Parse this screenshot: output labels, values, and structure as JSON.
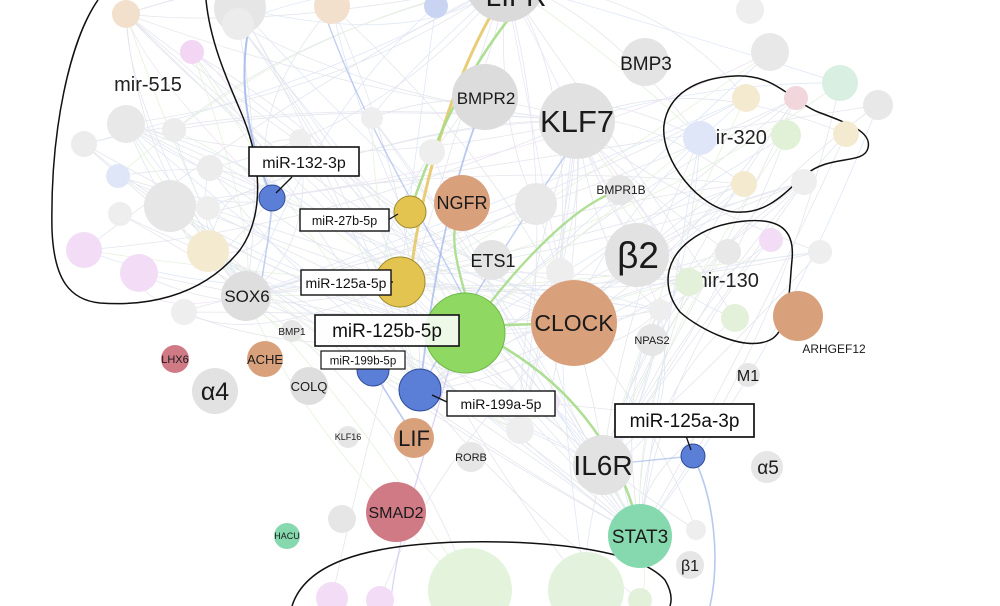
{
  "colors": {
    "gray": "#dadada",
    "mirna_blue": "#5b7fd6",
    "mirna_yellow": "#e3c450",
    "hub_green": "#8fd862",
    "tan": "#d9a07c",
    "red": "#d07a86",
    "teal": "#86d9ae",
    "edge_blue": "#9ab0e8",
    "edge_green": "#a6dc88",
    "edge_yellow": "#e6c867"
  },
  "clusters": [
    {
      "id": "c515",
      "label": "mir-515"
    },
    {
      "id": "c320",
      "label": "mir-320"
    },
    {
      "id": "c130",
      "label": "mir-130"
    },
    {
      "id": "cbot",
      "label": ""
    }
  ],
  "nodes": [
    {
      "id": "lifr",
      "label": "LIFR",
      "size": "xl",
      "color": "gray"
    },
    {
      "id": "bmp3",
      "label": "BMP3",
      "size": "md",
      "color": "gray"
    },
    {
      "id": "bmpr2",
      "label": "BMPR2",
      "size": "md",
      "color": "gray"
    },
    {
      "id": "klf7",
      "label": "KLF7",
      "size": "xl",
      "color": "gray"
    },
    {
      "id": "bmpr1b",
      "label": "BMPR1B",
      "size": "xs",
      "color": "gray"
    },
    {
      "id": "ngfr",
      "label": "NGFR",
      "size": "md",
      "color": "tan"
    },
    {
      "id": "ets1",
      "label": "ETS1",
      "size": "md",
      "color": "gray"
    },
    {
      "id": "b2",
      "label": "β2",
      "size": "xxl",
      "color": "gray"
    },
    {
      "id": "sox6",
      "label": "SOX6",
      "size": "md",
      "color": "gray"
    },
    {
      "id": "clock",
      "label": "CLOCK",
      "size": "lg",
      "color": "tan"
    },
    {
      "id": "bmp1",
      "label": "BMP1",
      "size": "xs",
      "color": "gray"
    },
    {
      "id": "npas2",
      "label": "NPAS2",
      "size": "xs",
      "color": "gray"
    },
    {
      "id": "arhgef12",
      "label": "ARHGEF12",
      "size": "sm",
      "color": "tan"
    },
    {
      "id": "lhx6",
      "label": "LHX6",
      "size": "xs",
      "color": "red"
    },
    {
      "id": "ache",
      "label": "ACHE",
      "size": "sm",
      "color": "tan"
    },
    {
      "id": "m1",
      "label": "M1",
      "size": "md",
      "color": "gray"
    },
    {
      "id": "a4",
      "label": "α4",
      "size": "xl",
      "color": "gray"
    },
    {
      "id": "colq",
      "label": "COLQ",
      "size": "sm",
      "color": "gray"
    },
    {
      "id": "klf16",
      "label": "KLF16",
      "size": "xs",
      "color": "gray"
    },
    {
      "id": "lif",
      "label": "LIF",
      "size": "lg",
      "color": "tan"
    },
    {
      "id": "rorb",
      "label": "RORB",
      "size": "xs",
      "color": "gray"
    },
    {
      "id": "il6r",
      "label": "IL6R",
      "size": "xl",
      "color": "gray"
    },
    {
      "id": "a5",
      "label": "α5",
      "size": "md",
      "color": "gray"
    },
    {
      "id": "smad2",
      "label": "SMAD2",
      "size": "md",
      "color": "red"
    },
    {
      "id": "hacu",
      "label": "HACU",
      "size": "xs",
      "color": "teal"
    },
    {
      "id": "stat3",
      "label": "STAT3",
      "size": "md",
      "color": "teal"
    },
    {
      "id": "b1",
      "label": "β1",
      "size": "md",
      "color": "gray"
    },
    {
      "id": "mir125b5p_node",
      "label": "",
      "size": "hub",
      "color": "hub_green"
    }
  ],
  "mirna_labels": [
    {
      "id": "mir132",
      "label": "miR-132-3p"
    },
    {
      "id": "mir27b",
      "label": "miR-27b-5p"
    },
    {
      "id": "mir125a5p",
      "label": "miR-125a-5p"
    },
    {
      "id": "mir125b5p",
      "label": "miR-125b-5p"
    },
    {
      "id": "mir199b",
      "label": "miR-199b-5p"
    },
    {
      "id": "mir199a",
      "label": "miR-199a-5p"
    },
    {
      "id": "mir125a3p",
      "label": "miR-125a-3p"
    }
  ]
}
